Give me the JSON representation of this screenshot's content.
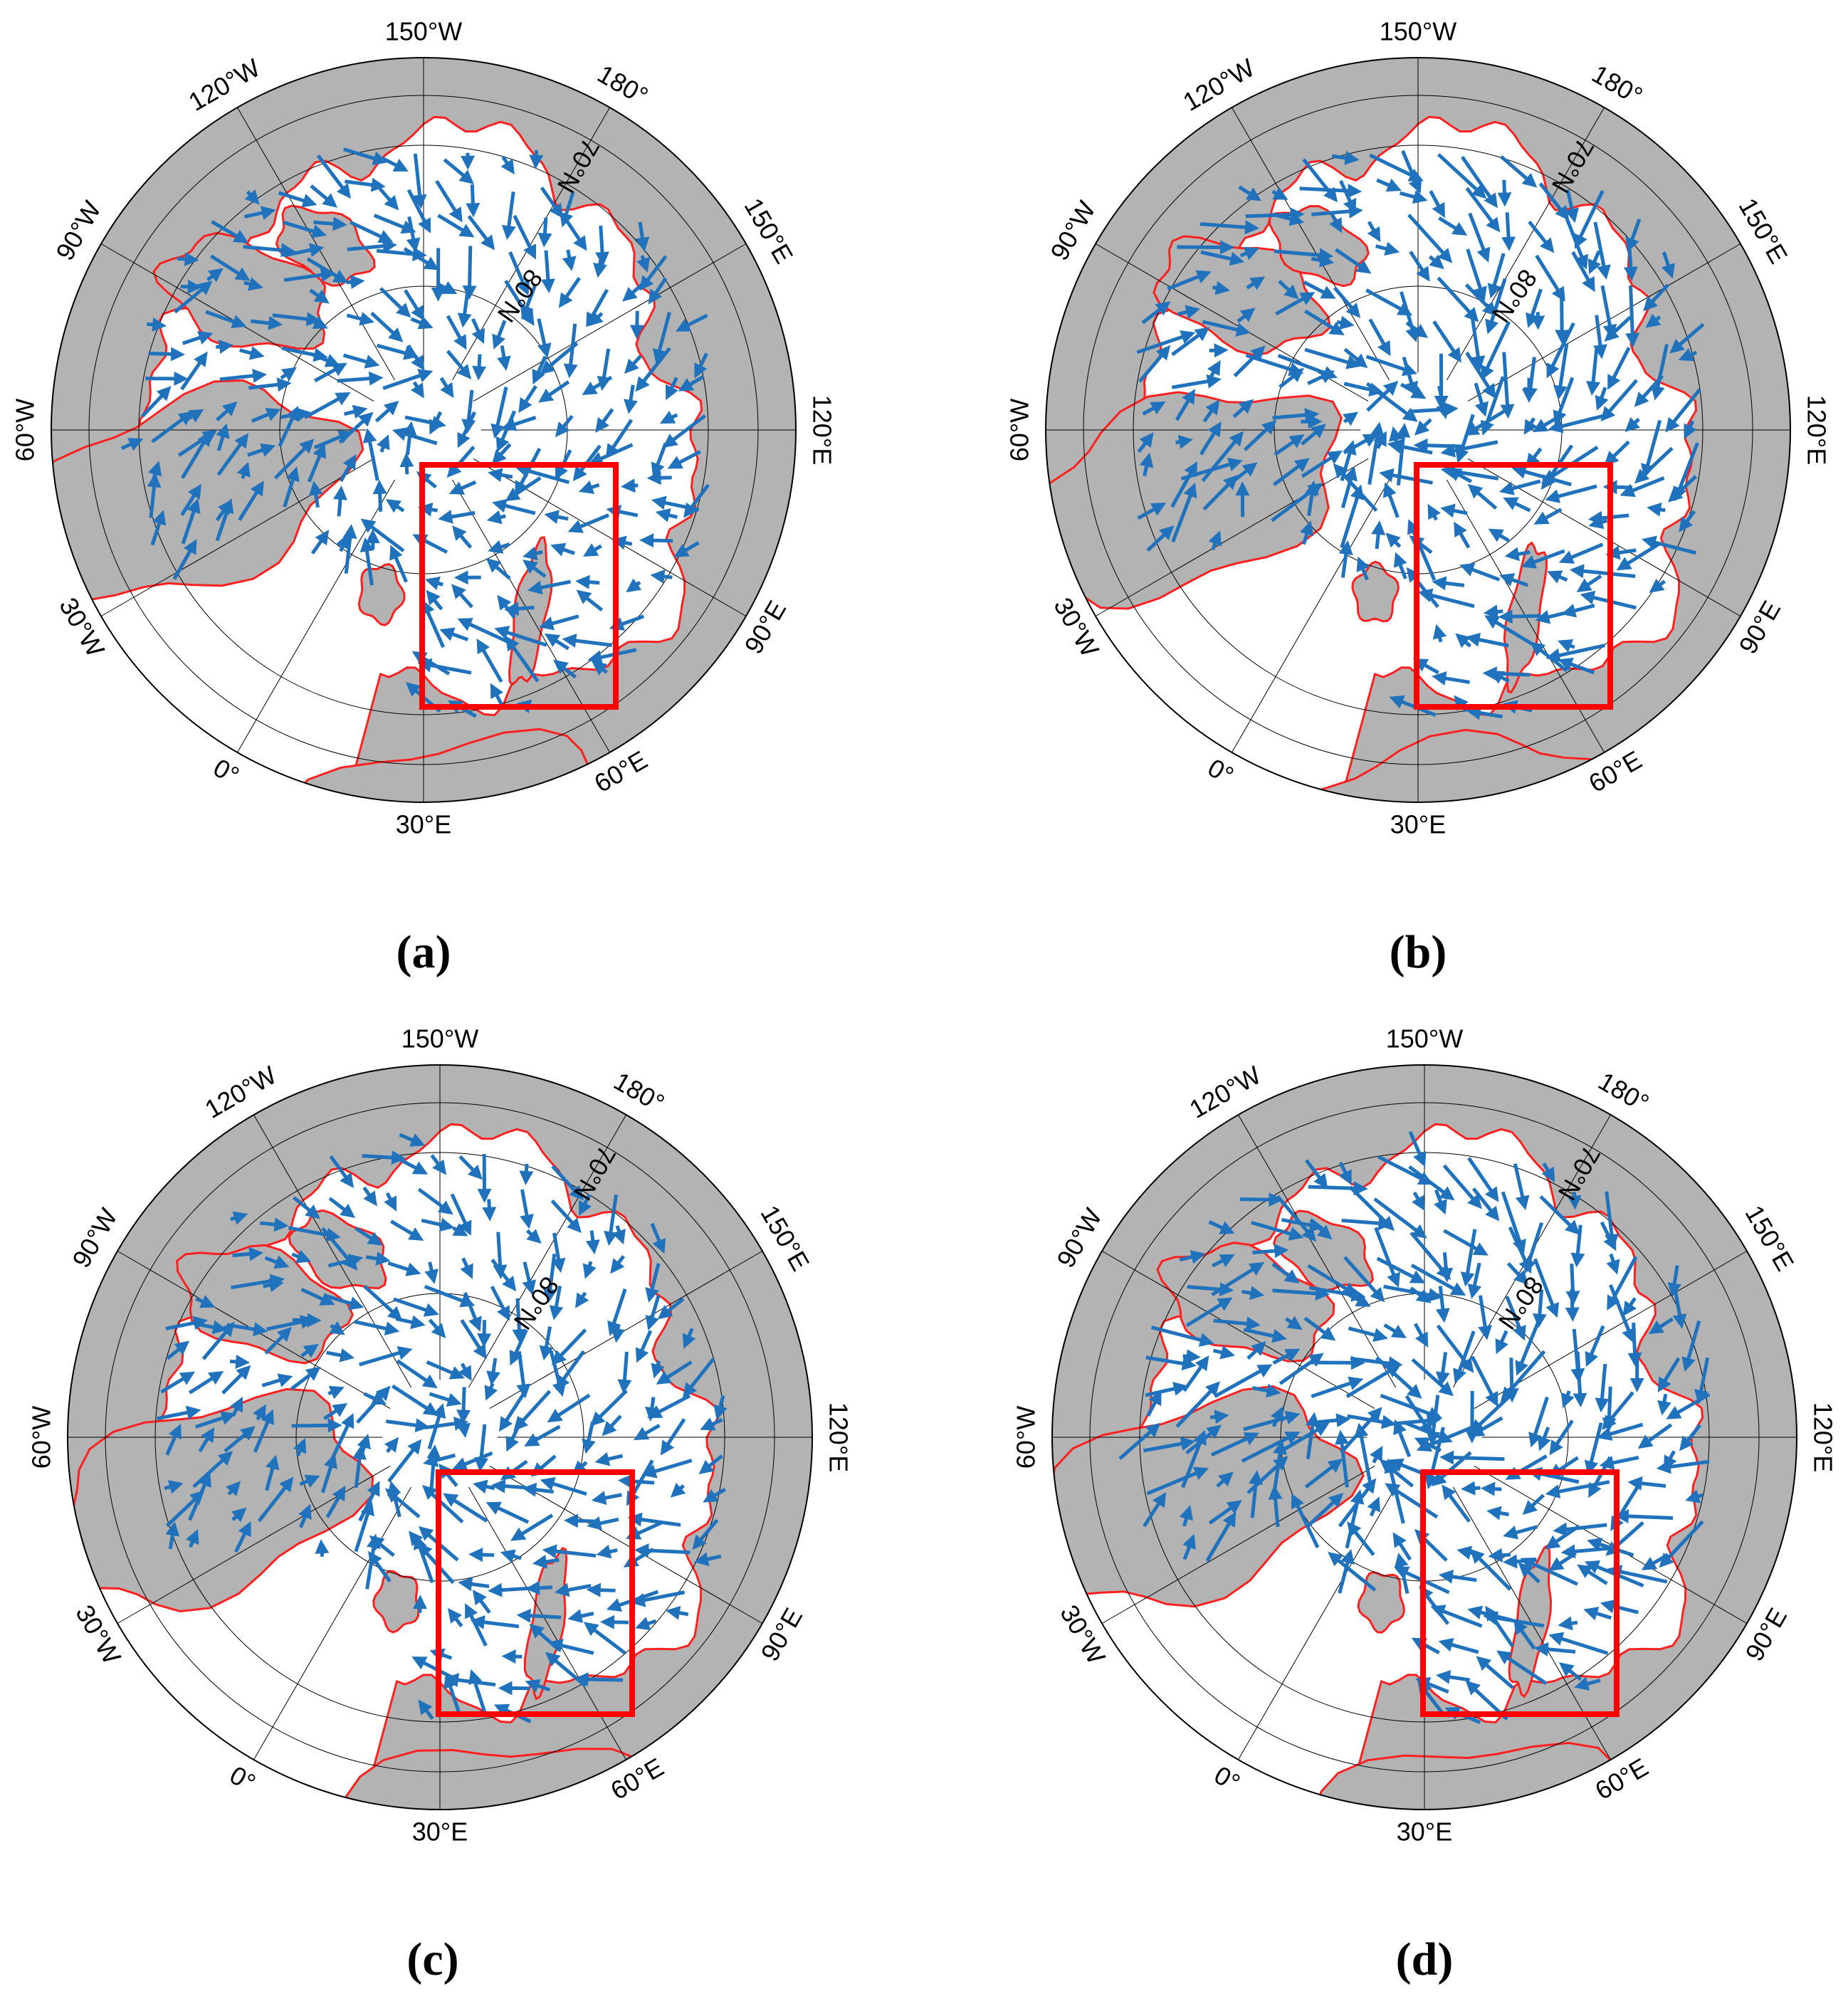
{
  "panels": [
    {
      "caption": "(a)"
    },
    {
      "caption": "(b)"
    },
    {
      "caption": "(c)"
    },
    {
      "caption": "(d)"
    }
  ],
  "meridian_labels": [
    "150°W",
    "180°",
    "150°E",
    "120°E",
    "90°E",
    "60°E",
    "30°E",
    "0°",
    "30°W",
    "60°W",
    "90°W",
    "120°W"
  ],
  "parallel_labels": [
    "70°N",
    "80°N"
  ]
}
